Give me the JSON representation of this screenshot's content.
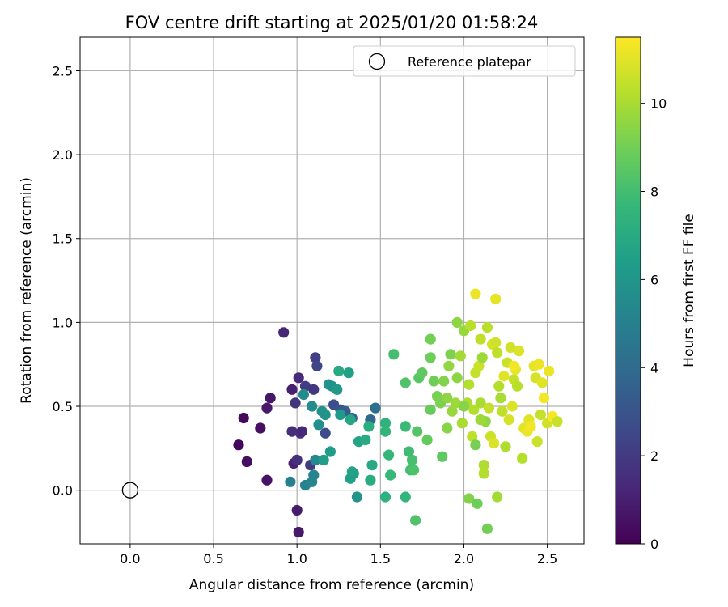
{
  "chart_data": {
    "type": "scatter",
    "title": "FOV centre drift starting at 2025/01/20 01:58:24",
    "xlabel": "Angular distance from reference (arcmin)",
    "ylabel": "Rotation from reference (arcmin)",
    "xlim": [
      -0.3,
      2.72
    ],
    "ylim": [
      -0.32,
      2.7
    ],
    "xticks": [
      0.0,
      0.5,
      1.0,
      1.5,
      2.0,
      2.5
    ],
    "yticks": [
      0.0,
      0.5,
      1.0,
      1.5,
      2.0,
      2.5
    ],
    "xtick_labels": [
      "0.0",
      "0.5",
      "1.0",
      "1.5",
      "2.0",
      "2.5"
    ],
    "ytick_labels": [
      "0.0",
      "0.5",
      "1.0",
      "1.5",
      "2.0",
      "2.5"
    ],
    "grid": true,
    "legend": {
      "placement": "top-right",
      "label": "Reference platepar"
    },
    "reference_point": {
      "x": 0.0,
      "y": 0.0
    },
    "colorbar": {
      "label": "Hours from first FF file",
      "colormap": "viridis",
      "range": [
        0,
        11.5
      ],
      "ticks": [
        0,
        2,
        4,
        6,
        8,
        10
      ],
      "tick_labels": [
        "0",
        "2",
        "4",
        "6",
        "8",
        "10"
      ]
    },
    "points": [
      [
        0.65,
        0.27,
        0.2
      ],
      [
        0.68,
        0.43,
        0.3
      ],
      [
        0.7,
        0.17,
        0.4
      ],
      [
        0.78,
        0.37,
        0.5
      ],
      [
        0.82,
        0.06,
        0.6
      ],
      [
        0.84,
        0.55,
        0.7
      ],
      [
        0.82,
        0.49,
        0.8
      ],
      [
        0.92,
        0.94,
        1.2
      ],
      [
        0.97,
        0.6,
        1.0
      ],
      [
        0.98,
        0.16,
        1.1
      ],
      [
        1.0,
        -0.12,
        0.9
      ],
      [
        1.01,
        -0.25,
        0.8
      ],
      [
        0.97,
        0.35,
        1.5
      ],
      [
        0.99,
        0.52,
        1.8
      ],
      [
        1.0,
        0.18,
        1.6
      ],
      [
        1.01,
        0.67,
        1.4
      ],
      [
        1.02,
        0.34,
        1.7
      ],
      [
        1.03,
        0.35,
        1.3
      ],
      [
        1.05,
        0.62,
        2.1
      ],
      [
        1.08,
        0.15,
        2.0
      ],
      [
        1.1,
        0.6,
        1.9
      ],
      [
        1.11,
        0.79,
        2.2
      ],
      [
        1.12,
        0.74,
        2.4
      ],
      [
        1.17,
        0.34,
        2.6
      ],
      [
        1.22,
        0.51,
        2.8
      ],
      [
        1.26,
        0.48,
        3.1
      ],
      [
        1.29,
        0.47,
        3.4
      ],
      [
        1.33,
        0.43,
        3.6
      ],
      [
        1.44,
        0.42,
        3.9
      ],
      [
        1.47,
        0.49,
        4.2
      ],
      [
        0.96,
        0.05,
        5.0
      ],
      [
        1.05,
        0.03,
        5.1
      ],
      [
        1.09,
        0.05,
        5.3
      ],
      [
        1.1,
        0.09,
        5.2
      ],
      [
        1.11,
        0.18,
        5.4
      ],
      [
        1.04,
        0.57,
        5.5
      ],
      [
        1.09,
        0.5,
        5.6
      ],
      [
        1.13,
        0.39,
        5.7
      ],
      [
        1.15,
        0.47,
        5.8
      ],
      [
        1.17,
        0.45,
        5.9
      ],
      [
        1.19,
        0.63,
        6.0
      ],
      [
        1.21,
        0.62,
        5.8
      ],
      [
        1.24,
        0.6,
        6.1
      ],
      [
        1.26,
        0.45,
        6.2
      ],
      [
        1.2,
        0.23,
        6.3
      ],
      [
        1.16,
        0.18,
        6.4
      ],
      [
        1.32,
        0.07,
        6.5
      ],
      [
        1.34,
        0.1,
        6.3
      ],
      [
        1.36,
        -0.04,
        6.0
      ],
      [
        1.33,
        0.11,
        6.6
      ],
      [
        1.37,
        0.29,
        6.7
      ],
      [
        1.32,
        0.42,
        6.8
      ],
      [
        1.25,
        0.71,
        6.9
      ],
      [
        1.31,
        0.7,
        6.5
      ],
      [
        1.41,
        0.3,
        7.0
      ],
      [
        1.44,
        0.06,
        7.1
      ],
      [
        1.45,
        0.15,
        6.9
      ],
      [
        1.43,
        0.38,
        7.2
      ],
      [
        1.53,
        0.4,
        7.4
      ],
      [
        1.53,
        0.35,
        7.5
      ],
      [
        1.53,
        -0.04,
        7.3
      ],
      [
        1.55,
        0.21,
        7.6
      ],
      [
        1.56,
        0.09,
        7.7
      ],
      [
        1.65,
        -0.04,
        7.5
      ],
      [
        1.65,
        0.38,
        7.8
      ],
      [
        1.67,
        0.23,
        7.9
      ],
      [
        1.68,
        0.12,
        8.0
      ],
      [
        1.69,
        0.18,
        8.1
      ],
      [
        1.7,
        0.12,
        8.2
      ],
      [
        1.71,
        -0.18,
        8.3
      ],
      [
        1.72,
        0.35,
        8.4
      ],
      [
        1.73,
        0.67,
        8.5
      ],
      [
        1.75,
        0.7,
        8.6
      ],
      [
        1.78,
        0.3,
        8.7
      ],
      [
        1.8,
        0.48,
        8.8
      ],
      [
        1.58,
        0.81,
        8.0
      ],
      [
        1.65,
        0.64,
        8.3
      ],
      [
        1.8,
        0.9,
        9.0
      ],
      [
        1.82,
        0.65,
        8.9
      ],
      [
        1.84,
        0.56,
        9.1
      ],
      [
        1.86,
        0.52,
        9.2
      ],
      [
        1.87,
        0.2,
        8.6
      ],
      [
        1.88,
        0.65,
        9.3
      ],
      [
        1.9,
        0.37,
        9.4
      ],
      [
        1.9,
        0.55,
        9.5
      ],
      [
        1.91,
        0.74,
        9.6
      ],
      [
        1.92,
        0.81,
        9.2
      ],
      [
        1.93,
        0.47,
        9.7
      ],
      [
        1.95,
        0.52,
        9.8
      ],
      [
        1.96,
        0.67,
        9.5
      ],
      [
        1.98,
        0.8,
        9.9
      ],
      [
        1.99,
        0.4,
        10.0
      ],
      [
        2.0,
        0.95,
        9.7
      ],
      [
        2.02,
        0.52,
        10.1
      ],
      [
        2.03,
        0.63,
        10.2
      ],
      [
        2.03,
        -0.05,
        9.3
      ],
      [
        2.04,
        0.98,
        10.3
      ],
      [
        2.05,
        0.32,
        10.4
      ],
      [
        2.06,
        0.48,
        10.2
      ],
      [
        2.07,
        0.27,
        9.1
      ],
      [
        2.07,
        0.7,
        10.5
      ],
      [
        2.08,
        -0.08,
        8.9
      ],
      [
        2.09,
        0.74,
        10.6
      ],
      [
        2.1,
        0.52,
        10.0
      ],
      [
        2.1,
        0.9,
        10.4
      ],
      [
        2.11,
        0.79,
        9.8
      ],
      [
        2.12,
        0.15,
        10.1
      ],
      [
        2.12,
        0.1,
        10.2
      ],
      [
        2.13,
        0.41,
        9.6
      ],
      [
        2.14,
        -0.23,
        9.0
      ],
      [
        2.14,
        0.97,
        10.3
      ],
      [
        2.15,
        0.49,
        10.5
      ],
      [
        2.16,
        0.32,
        10.6
      ],
      [
        2.17,
        0.87,
        10.8
      ],
      [
        2.18,
        0.28,
        10.9
      ],
      [
        2.19,
        0.88,
        10.7
      ],
      [
        2.2,
        -0.04,
        9.9
      ],
      [
        2.21,
        0.62,
        10.2
      ],
      [
        2.22,
        0.55,
        10.0
      ],
      [
        2.23,
        0.47,
        10.4
      ],
      [
        2.24,
        0.68,
        11.0
      ],
      [
        2.25,
        0.26,
        10.1
      ],
      [
        2.26,
        0.76,
        10.6
      ],
      [
        2.27,
        0.42,
        10.8
      ],
      [
        2.28,
        0.85,
        10.7
      ],
      [
        2.29,
        0.5,
        10.9
      ],
      [
        2.3,
        0.66,
        10.5
      ],
      [
        2.31,
        0.72,
        11.1
      ],
      [
        2.32,
        0.62,
        10.3
      ],
      [
        2.33,
        0.83,
        10.9
      ],
      [
        2.35,
        0.19,
        10.2
      ],
      [
        2.36,
        0.37,
        11.0
      ],
      [
        2.38,
        0.35,
        11.2
      ],
      [
        2.39,
        0.42,
        11.0
      ],
      [
        2.4,
        0.38,
        11.3
      ],
      [
        2.42,
        0.74,
        11.1
      ],
      [
        2.43,
        0.67,
        10.8
      ],
      [
        2.44,
        0.29,
        10.6
      ],
      [
        2.45,
        0.75,
        11.2
      ],
      [
        2.46,
        0.45,
        10.5
      ],
      [
        2.47,
        0.64,
        11.0
      ],
      [
        2.48,
        0.55,
        11.3
      ],
      [
        2.5,
        0.4,
        10.7
      ],
      [
        2.51,
        0.71,
        11.2
      ],
      [
        2.53,
        0.44,
        11.4
      ],
      [
        2.56,
        0.41,
        10.6
      ],
      [
        2.07,
        1.17,
        11.2
      ],
      [
        2.19,
        1.14,
        11.1
      ],
      [
        2.2,
        0.82,
        10.4
      ],
      [
        2.3,
        0.74,
        11.3
      ],
      [
        2.1,
        0.42,
        9.8
      ],
      [
        2.0,
        0.5,
        9.4
      ],
      [
        1.96,
        1.0,
        9.5
      ],
      [
        1.8,
        0.79,
        8.9
      ]
    ]
  }
}
